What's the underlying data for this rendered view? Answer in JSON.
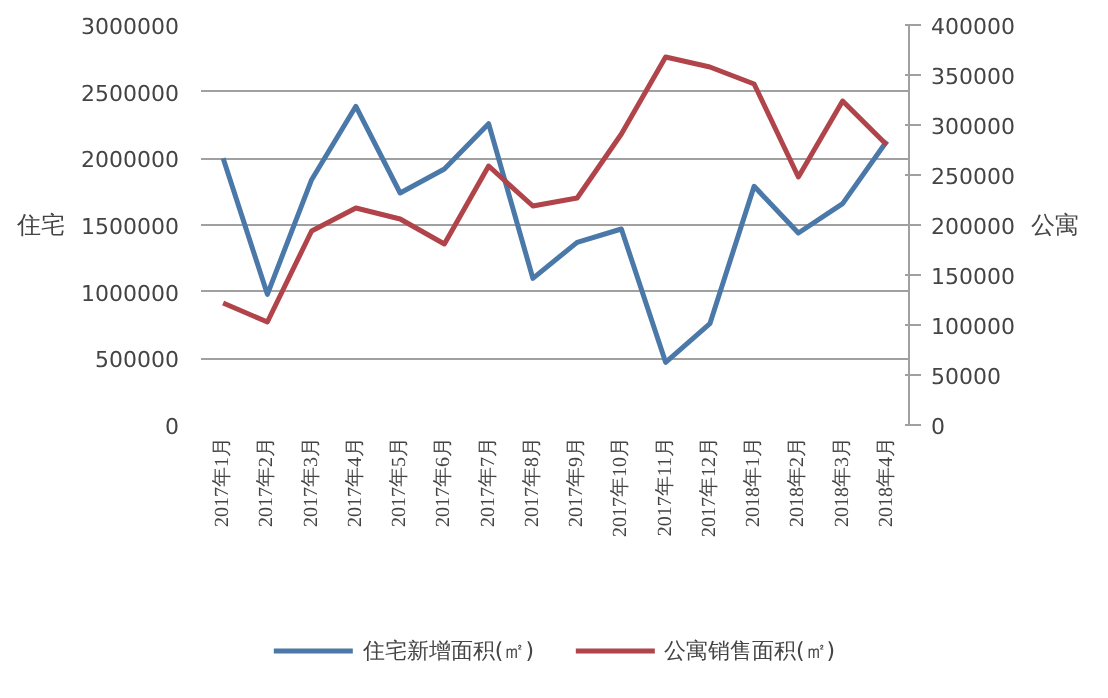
{
  "chart_data": {
    "type": "line",
    "ylabel": "住宅",
    "y2label": "公寓",
    "categories": [
      "2017年1月",
      "2017年2月",
      "2017年3月",
      "2017年4月",
      "2017年5月",
      "2017年6月",
      "2017年7月",
      "2017年8月",
      "2017年9月",
      "2017年10月",
      "2017年11月",
      "2017年12月",
      "2018年1月",
      "2018年2月",
      "2018年3月",
      "2018年4月"
    ],
    "series": [
      {
        "name": "住宅新增面积(㎡)",
        "color": "#4a78a8",
        "values": [
          2000000,
          980000,
          1840000,
          2390000,
          1740000,
          1920000,
          2260000,
          1100000,
          1370000,
          1470000,
          470000,
          760000,
          1790000,
          1440000,
          1660000,
          2130000
        ]
      },
      {
        "name": "公寓销售面积(㎡)",
        "color": "#b0444a",
        "axis": "y2",
        "values": [
          122000,
          103000,
          194000,
          217000,
          206000,
          181000,
          259000,
          219000,
          227000,
          291000,
          368000,
          358000,
          341000,
          248000,
          324000,
          280000
        ]
      }
    ],
    "ylim": [
      0,
      3000000
    ],
    "yticks": [
      0,
      500000,
      1000000,
      1500000,
      2000000,
      2500000,
      3000000
    ],
    "y2lim": [
      0,
      400000
    ],
    "y2ticks": [
      0,
      50000,
      100000,
      150000,
      200000,
      250000,
      300000,
      350000,
      400000
    ],
    "grid": "y",
    "legend": "bottom",
    "marker": "none",
    "line_style": "solid"
  }
}
